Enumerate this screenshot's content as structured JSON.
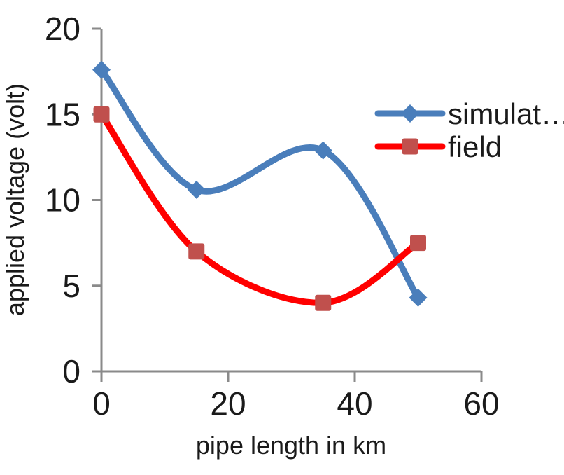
{
  "chart_data": {
    "type": "line",
    "title": "",
    "xlabel": "pipe length in km",
    "ylabel": "applied voltage (volt)",
    "x": [
      0,
      15,
      35,
      50
    ],
    "series": [
      {
        "name": "simulat…",
        "values": [
          17.6,
          10.6,
          12.9,
          4.3
        ],
        "line_color": "#4a7ebb",
        "marker": "diamond",
        "marker_color": "#4a7ebb"
      },
      {
        "name": "field",
        "values": [
          15,
          7,
          4,
          7.5
        ],
        "line_color": "#ff0000",
        "marker": "square",
        "marker_color": "#c0504d"
      }
    ],
    "xlim": [
      0,
      60
    ],
    "ylim": [
      0,
      20
    ],
    "x_ticks": [
      0,
      20,
      40,
      60
    ],
    "y_ticks": [
      0,
      5,
      10,
      15,
      20
    ],
    "grid": false,
    "smooth": true,
    "legend_position": "upper-right-inside",
    "axis_color": "#8a8a8a",
    "text_color": "#1a1a1a",
    "background_color": "#ffffff"
  }
}
